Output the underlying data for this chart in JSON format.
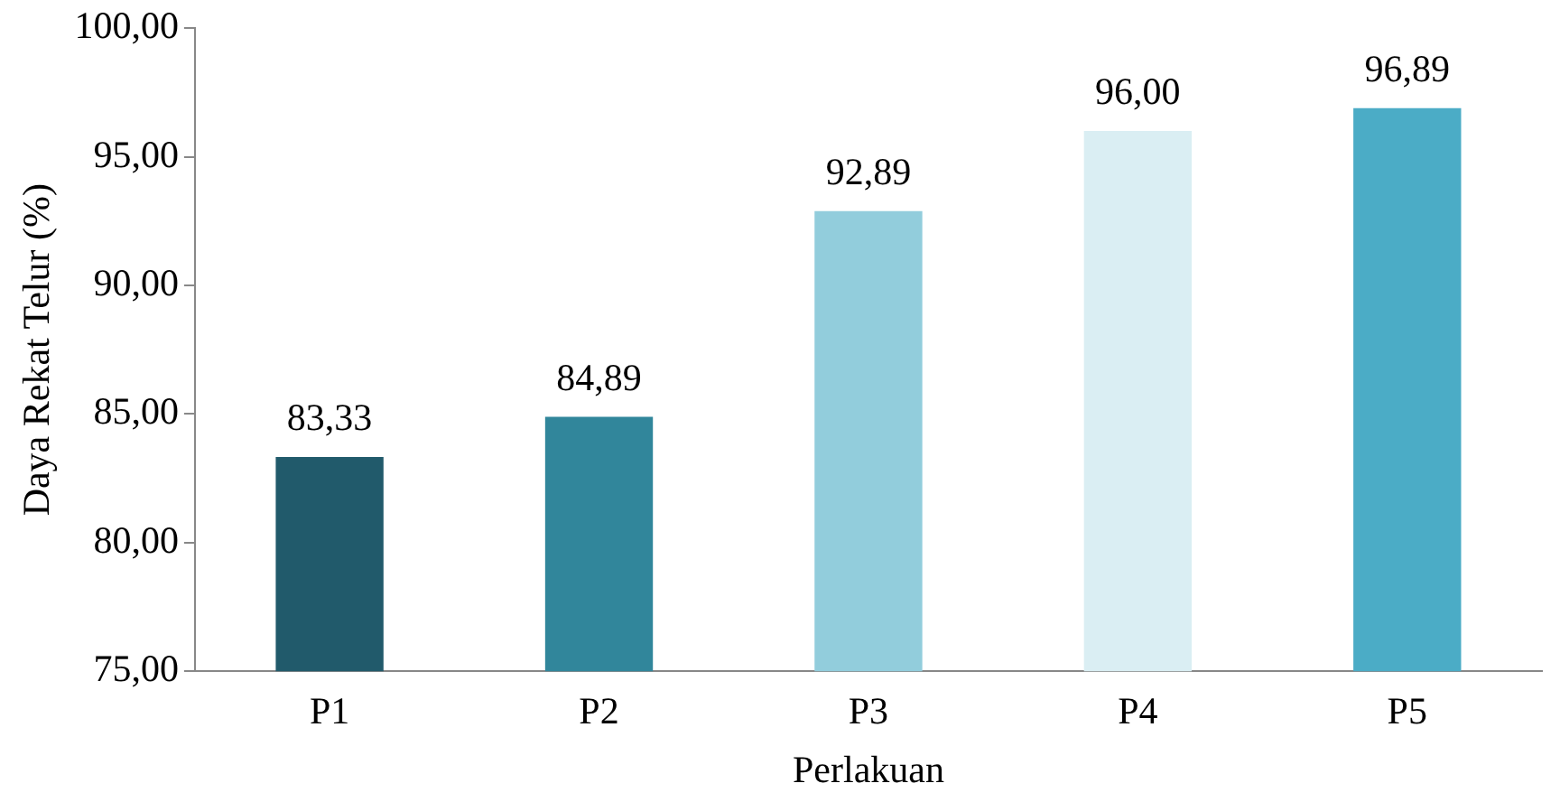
{
  "chart_data": {
    "type": "bar",
    "xlabel": "Perlakuan",
    "ylabel": "Daya Rekat Telur (%)",
    "categories": [
      "P1",
      "P2",
      "P3",
      "P4",
      "P5"
    ],
    "values": [
      83.33,
      84.89,
      92.89,
      96.0,
      96.89
    ],
    "colors": [
      "#215a6b",
      "#31869b",
      "#92cddc",
      "#daeef3",
      "#4bacc6"
    ],
    "value_labels": [
      "83,33",
      "84,89",
      "92,89",
      "96,00",
      "96,89"
    ],
    "ylim": [
      75,
      100
    ],
    "yticks": [
      {
        "value": 75,
        "label": "75,00"
      },
      {
        "value": 80,
        "label": "80,00"
      },
      {
        "value": 85,
        "label": "85,00"
      },
      {
        "value": 90,
        "label": "90,00"
      },
      {
        "value": 95,
        "label": "95,00"
      },
      {
        "value": 100,
        "label": "100,00"
      }
    ],
    "grid": false,
    "legend": false
  }
}
